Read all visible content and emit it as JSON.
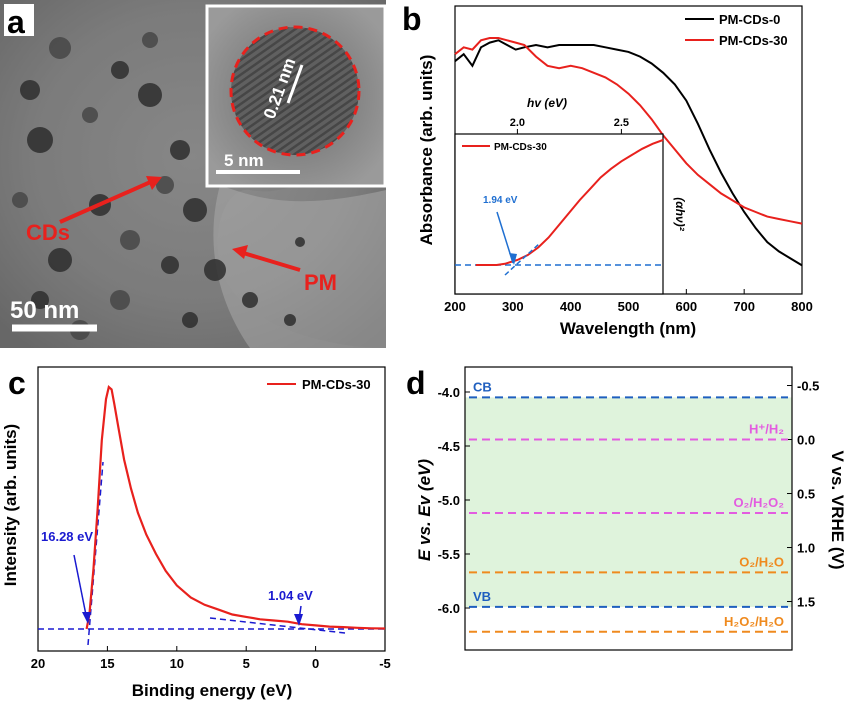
{
  "panels": {
    "a": {
      "letter": "a",
      "scale_bar": "50 nm",
      "inset_scale_bar": "5 nm",
      "lattice_label": "0.21 nm",
      "label_cds": "CDs",
      "label_pm": "PM"
    },
    "b": {
      "letter": "b"
    },
    "c": {
      "letter": "c"
    },
    "d": {
      "letter": "d"
    }
  },
  "chart_data": [
    {
      "panel": "b",
      "type": "line",
      "xlabel": "Wavelength (nm)",
      "ylabel": "Absorbance (arb. units)",
      "xlim": [
        200,
        800
      ],
      "xticks": [
        "200",
        "300",
        "400",
        "500",
        "600",
        "700",
        "800"
      ],
      "legend_position": "top-right",
      "series": [
        {
          "name": "PM-CDs-0",
          "color": "#000000",
          "x": [
            200,
            215,
            230,
            245,
            260,
            275,
            290,
            305,
            320,
            340,
            360,
            380,
            400,
            420,
            440,
            460,
            480,
            500,
            520,
            540,
            560,
            580,
            600,
            620,
            640,
            660,
            680,
            700,
            720,
            740,
            760,
            780,
            800
          ],
          "y": [
            0.9,
            0.93,
            0.88,
            0.96,
            0.98,
            0.99,
            0.97,
            0.95,
            0.96,
            0.97,
            0.96,
            0.97,
            0.97,
            0.97,
            0.97,
            0.96,
            0.95,
            0.94,
            0.92,
            0.89,
            0.85,
            0.8,
            0.73,
            0.63,
            0.52,
            0.42,
            0.33,
            0.25,
            0.18,
            0.12,
            0.08,
            0.05,
            0.02
          ]
        },
        {
          "name": "PM-CDs-30",
          "color": "#e8211d",
          "x": [
            200,
            215,
            230,
            245,
            260,
            275,
            290,
            305,
            320,
            340,
            360,
            380,
            400,
            420,
            440,
            460,
            480,
            500,
            520,
            540,
            560,
            580,
            600,
            620,
            640,
            660,
            680,
            700,
            720,
            740,
            760,
            780,
            800
          ],
          "y": [
            0.93,
            0.96,
            0.95,
            0.99,
            1.0,
            1.0,
            0.99,
            0.98,
            0.97,
            0.92,
            0.88,
            0.87,
            0.88,
            0.87,
            0.85,
            0.83,
            0.8,
            0.76,
            0.71,
            0.65,
            0.58,
            0.52,
            0.46,
            0.41,
            0.37,
            0.33,
            0.3,
            0.27,
            0.25,
            0.23,
            0.22,
            0.21,
            0.2
          ]
        }
      ],
      "inset": {
        "type": "line",
        "xlabel": "hv (eV)",
        "ylabel": "(αhν)²",
        "xticks": [
          "2.0",
          "2.5"
        ],
        "xlim": [
          1.7,
          2.7
        ],
        "annotation": "1.94 eV",
        "series": [
          {
            "name": "PM-CDs-30",
            "color": "#e8211d",
            "x": [
              1.8,
              1.85,
              1.9,
              1.94,
              2.0,
              2.05,
              2.1,
              2.15,
              2.2,
              2.25,
              2.3,
              2.35,
              2.4,
              2.45,
              2.5,
              2.55,
              2.6,
              2.65,
              2.7
            ],
            "y": [
              0.0,
              0.0,
              0.0,
              0.01,
              0.04,
              0.08,
              0.14,
              0.22,
              0.32,
              0.42,
              0.52,
              0.61,
              0.7,
              0.77,
              0.83,
              0.88,
              0.93,
              0.97,
              1.0
            ]
          }
        ]
      }
    },
    {
      "panel": "c",
      "type": "line",
      "xlabel": "Binding energy (eV)",
      "ylabel": "Intensity (arb. units)",
      "xlim": [
        20,
        -5
      ],
      "xticks": [
        "20",
        "15",
        "10",
        "5",
        "0",
        "-5"
      ],
      "legend_position": "top-right",
      "annotations": [
        "16.28 eV",
        "1.04 eV"
      ],
      "series": [
        {
          "name": "PM-CDs-30",
          "color": "#e8211d",
          "x": [
            16.5,
            16.3,
            16.0,
            15.7,
            15.4,
            15.1,
            14.9,
            14.7,
            14.5,
            14.2,
            13.8,
            13.3,
            12.8,
            12.2,
            11.5,
            10.8,
            10.0,
            9.0,
            8.0,
            7.0,
            6.0,
            5.0,
            4.0,
            3.0,
            2.0,
            1.0,
            0.0,
            -1.0,
            -2.0,
            -3.0,
            -4.0,
            -5.0
          ],
          "y": [
            0.0,
            0.06,
            0.25,
            0.5,
            0.78,
            0.95,
            1.0,
            0.99,
            0.93,
            0.83,
            0.7,
            0.58,
            0.48,
            0.39,
            0.31,
            0.24,
            0.18,
            0.13,
            0.1,
            0.08,
            0.06,
            0.05,
            0.04,
            0.035,
            0.03,
            0.02,
            0.015,
            0.01,
            0.008,
            0.005,
            0.003,
            0.002
          ]
        }
      ]
    },
    {
      "panel": "d",
      "type": "line",
      "ylabel_left": "E vs. Ev (eV)",
      "ylabel_right": "V vs. VRHE (V)",
      "yticks_left": [
        "-4.0",
        "-4.5",
        "-5.0",
        "-5.5",
        "-6.0"
      ],
      "yticks_right": [
        "-0.5",
        "0.0",
        "0.5",
        "1.0",
        "1.5"
      ],
      "levels": [
        {
          "label": "CB",
          "energy": -4.05,
          "color": "#1f5fbf"
        },
        {
          "label": "H⁺/H₂",
          "energy": -4.44,
          "color": "#e35ce0"
        },
        {
          "label": "O₂/H₂O₂",
          "energy": -5.12,
          "color": "#e35ce0"
        },
        {
          "label": "O₂/H₂O",
          "energy": -5.67,
          "color": "#ef8a1e"
        },
        {
          "label": "VB",
          "energy": -5.99,
          "color": "#1f5fbf"
        },
        {
          "label": "H₂O₂/H₂O",
          "energy": -6.22,
          "color": "#ef8a1e"
        }
      ]
    }
  ]
}
